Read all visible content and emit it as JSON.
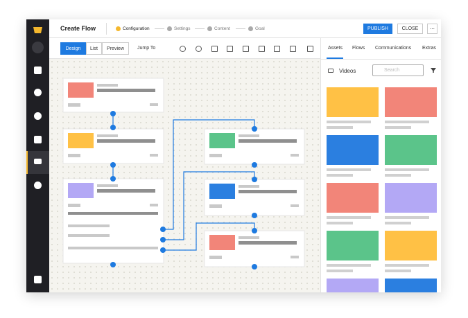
{
  "header": {
    "title": "Create Flow",
    "steps": [
      "Configuration",
      "Settings",
      "Content",
      "Goal"
    ],
    "publish": "PUBLISH",
    "close": "CLOSE"
  },
  "toolbar": {
    "views": [
      "Design",
      "List",
      "Preview"
    ],
    "jump": "Jump To"
  },
  "panel": {
    "tabs": [
      "Assets",
      "Flows",
      "Communications",
      "Extras"
    ],
    "filter": "Videos",
    "search": "Search"
  }
}
